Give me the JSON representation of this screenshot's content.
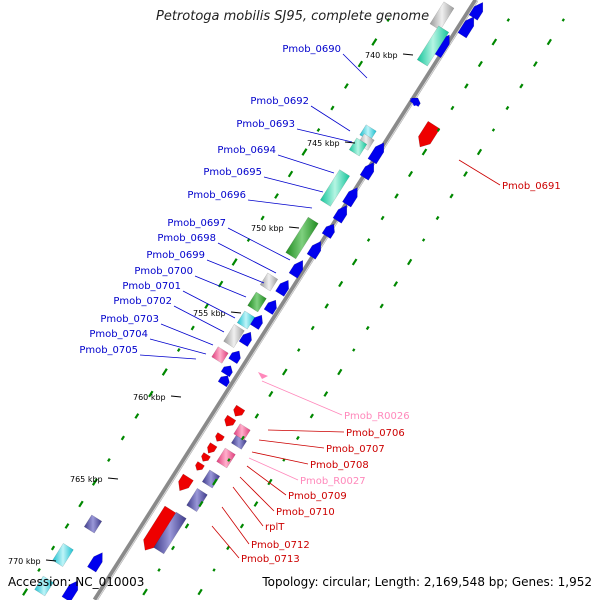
{
  "title": "Petrotoga mobilis SJ95, complete genome",
  "footer": {
    "accession": "Accession: NC_010003",
    "topology": "Topology: circular; Length: 2,169,548 bp; Genes: 1,952"
  },
  "colors": {
    "forward_cds": "#0000ee",
    "reverse_cds": "#ee0000",
    "forward_label": "#0000cc",
    "reverse_label": "#cc0000",
    "rna_label": "#ff88bb",
    "backbone": "#888888",
    "gc_dots": "#008800"
  },
  "ticks": [
    "740 kbp",
    "745 kbp",
    "750 kbp",
    "755 kbp",
    "760 kbp",
    "765 kbp",
    "770 kbp"
  ],
  "forward_genes": [
    "Pmob_0690",
    "Pmob_0692",
    "Pmob_0693",
    "Pmob_0694",
    "Pmob_0695",
    "Pmob_0696",
    "Pmob_0697",
    "Pmob_0698",
    "Pmob_0699",
    "Pmob_0700",
    "Pmob_0701",
    "Pmob_0702",
    "Pmob_0703",
    "Pmob_0704",
    "Pmob_0705"
  ],
  "reverse_genes": [
    "Pmob_0691",
    "Pmob_R0026",
    "Pmob_0706",
    "Pmob_0707",
    "Pmob_0708",
    "Pmob_R0027",
    "Pmob_0709",
    "Pmob_0710",
    "rplT",
    "Pmob_0712",
    "Pmob_0713"
  ]
}
